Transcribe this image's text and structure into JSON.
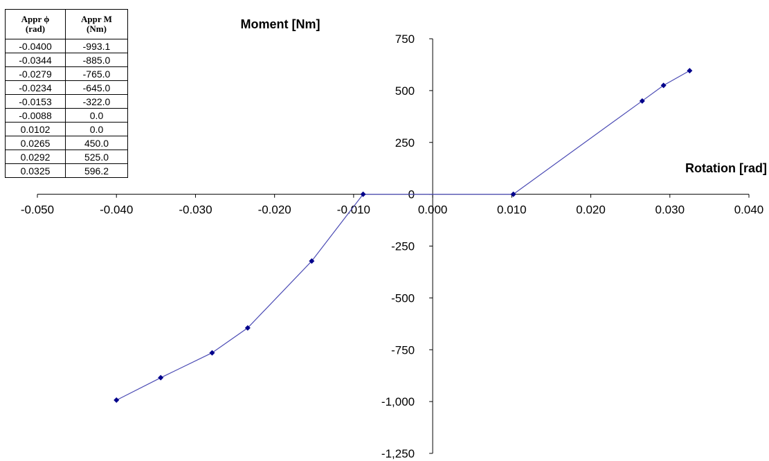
{
  "table": {
    "col1_header": "Appr ϕ",
    "col1_unit": "(rad)",
    "col2_header": "Appr M",
    "col2_unit": "(Nm)",
    "rows": [
      {
        "phi": "-0.0400",
        "m": "-993.1"
      },
      {
        "phi": "-0.0344",
        "m": "-885.0"
      },
      {
        "phi": "-0.0279",
        "m": "-765.0"
      },
      {
        "phi": "-0.0234",
        "m": "-645.0"
      },
      {
        "phi": "-0.0153",
        "m": "-322.0"
      },
      {
        "phi": "-0.0088",
        "m": "0.0"
      },
      {
        "phi": "0.0102",
        "m": "0.0"
      },
      {
        "phi": "0.0265",
        "m": "450.0"
      },
      {
        "phi": "0.0292",
        "m": "525.0"
      },
      {
        "phi": "0.0325",
        "m": "596.2"
      }
    ]
  },
  "chart_data": {
    "type": "line",
    "title": "",
    "xlabel": "Rotation [rad]",
    "ylabel": "Moment [Nm]",
    "xlim": [
      -0.05,
      0.04
    ],
    "ylim": [
      -1250,
      750
    ],
    "x_ticks": [
      -0.05,
      -0.04,
      -0.03,
      -0.02,
      -0.01,
      0.0,
      0.01,
      0.02,
      0.03,
      0.04
    ],
    "x_tick_labels": [
      "-0.050",
      "-0.040",
      "-0.030",
      "-0.020",
      "-0.010",
      "0.000",
      "0.010",
      "0.020",
      "0.030",
      "0.040"
    ],
    "y_ticks": [
      750,
      500,
      250,
      0,
      -250,
      -500,
      -750,
      -1000,
      -1250
    ],
    "y_tick_labels": [
      "750",
      "500",
      "250",
      "0",
      "-250",
      "-500",
      "-750",
      "-1,000",
      "-1,250"
    ],
    "grid": false,
    "legend": "none",
    "series": [
      {
        "color": "#00008b",
        "line_color": "#4a4ab4",
        "x": [
          -0.04,
          -0.0344,
          -0.0279,
          -0.0234,
          -0.0153,
          -0.0088,
          0.0102,
          0.0265,
          0.0292,
          0.0325
        ],
        "y": [
          -993.1,
          -885.0,
          -765.0,
          -645.0,
          -322.0,
          0.0,
          0.0,
          450.0,
          525.0,
          596.2
        ]
      }
    ]
  }
}
